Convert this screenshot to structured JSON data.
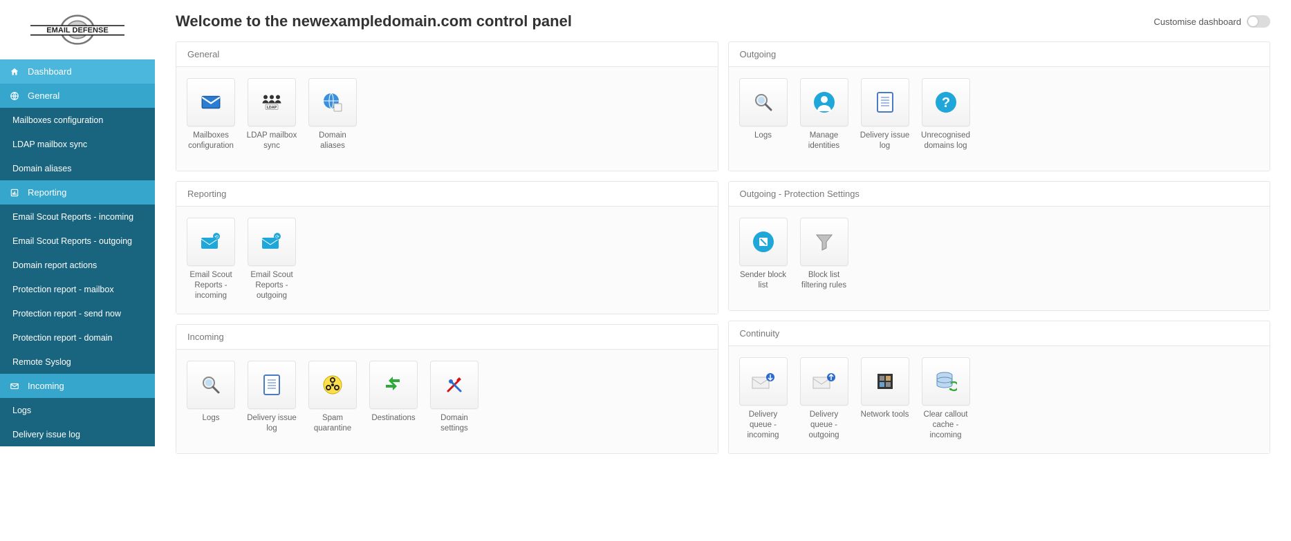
{
  "brand": "EMAIL DEFENSE",
  "header": {
    "title": "Welcome to the newexampledomain.com control panel",
    "customise_label": "Customise dashboard"
  },
  "sidebar": {
    "sections": [
      {
        "type": "category",
        "icon": "home",
        "label": "Dashboard",
        "active": true
      },
      {
        "type": "category",
        "icon": "globe",
        "label": "General"
      },
      {
        "type": "sub",
        "label": "Mailboxes configuration"
      },
      {
        "type": "sub",
        "label": "LDAP mailbox sync"
      },
      {
        "type": "sub",
        "label": "Domain aliases"
      },
      {
        "type": "category",
        "icon": "report",
        "label": "Reporting"
      },
      {
        "type": "sub",
        "label": "Email Scout Reports - incoming"
      },
      {
        "type": "sub",
        "label": "Email Scout Reports - outgoing"
      },
      {
        "type": "sub",
        "label": "Domain report actions"
      },
      {
        "type": "sub",
        "label": "Protection report - mailbox"
      },
      {
        "type": "sub",
        "label": "Protection report - send now"
      },
      {
        "type": "sub",
        "label": "Protection report - domain"
      },
      {
        "type": "sub",
        "label": "Remote Syslog"
      },
      {
        "type": "category",
        "icon": "mail",
        "label": "Incoming"
      },
      {
        "type": "sub",
        "label": "Logs"
      },
      {
        "type": "sub",
        "label": "Delivery issue log"
      }
    ]
  },
  "panels": {
    "left": [
      {
        "title": "General",
        "tiles": [
          {
            "icon": "envelope",
            "label": "Mailboxes configuration",
            "name": "tile-mailboxes-configuration"
          },
          {
            "icon": "ldap",
            "label": "LDAP mailbox sync",
            "name": "tile-ldap-mailbox-sync"
          },
          {
            "icon": "globe-gear",
            "label": "Domain aliases",
            "name": "tile-domain-aliases"
          }
        ]
      },
      {
        "title": "Reporting",
        "tiles": [
          {
            "icon": "report-in",
            "label": "Email Scout Reports - incoming",
            "name": "tile-esr-incoming"
          },
          {
            "icon": "report-out",
            "label": "Email Scout Reports - outgoing",
            "name": "tile-esr-outgoing"
          }
        ]
      },
      {
        "title": "Incoming",
        "tiles": [
          {
            "icon": "search",
            "label": "Logs",
            "name": "tile-incoming-logs"
          },
          {
            "icon": "doc-list",
            "label": "Delivery issue log",
            "name": "tile-incoming-delivery-issue-log"
          },
          {
            "icon": "biohazard",
            "label": "Spam quarantine",
            "name": "tile-spam-quarantine"
          },
          {
            "icon": "arrows",
            "label": "Destinations",
            "name": "tile-destinations"
          },
          {
            "icon": "tools",
            "label": "Domain settings",
            "name": "tile-domain-settings"
          }
        ]
      }
    ],
    "right": [
      {
        "title": "Outgoing",
        "tiles": [
          {
            "icon": "search",
            "label": "Logs",
            "name": "tile-outgoing-logs"
          },
          {
            "icon": "person",
            "label": "Manage identities",
            "name": "tile-manage-identities"
          },
          {
            "icon": "doc-list",
            "label": "Delivery issue log",
            "name": "tile-outgoing-delivery-issue-log"
          },
          {
            "icon": "question",
            "label": "Unrecognised domains log",
            "name": "tile-unrecognised-domains-log"
          }
        ]
      },
      {
        "title": "Outgoing - Protection Settings",
        "tiles": [
          {
            "icon": "block",
            "label": "Sender block list",
            "name": "tile-sender-block-list"
          },
          {
            "icon": "funnel",
            "label": "Block list filtering rules",
            "name": "tile-blocklist-filtering-rules"
          }
        ]
      },
      {
        "title": "Continuity",
        "tiles": [
          {
            "icon": "queue-in",
            "label": "Delivery queue - incoming",
            "name": "tile-delivery-queue-incoming"
          },
          {
            "icon": "queue-out",
            "label": "Delivery queue - outgoing",
            "name": "tile-delivery-queue-outgoing"
          },
          {
            "icon": "network",
            "label": "Network tools",
            "name": "tile-network-tools"
          },
          {
            "icon": "cache",
            "label": "Clear callout cache - incoming",
            "name": "tile-clear-callout-cache-incoming"
          }
        ]
      }
    ]
  },
  "colors": {
    "sidebar_category": "#36a6cc",
    "sidebar_category_active": "#4cb7dc",
    "sidebar_sub": "#19647e",
    "accent": "#1ea7d8",
    "panel_border": "#e6e6e6",
    "text_heading": "#333333"
  }
}
